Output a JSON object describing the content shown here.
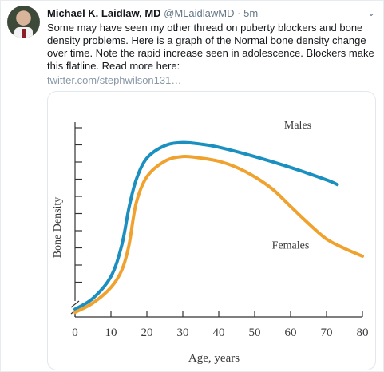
{
  "tweet": {
    "author_name": "Michael K. Laidlaw, MD",
    "author_handle": "@MLaidlawMD",
    "separator": "·",
    "time": "5m",
    "text": "Some may have seen my other thread on puberty blockers and bone density problems. Here is a graph of the Normal bone density change over time. Note the rapid increase seen in adolescence. Blockers make this flatline. Read more here:",
    "link_text": "twitter.com/stephwilson131…",
    "menu_icon": "chevron-down-icon",
    "colors": {
      "link": "#8899a6",
      "name": "#14171a",
      "meta": "#657786"
    }
  },
  "chart_data": {
    "type": "line",
    "xlabel": "Age, years",
    "ylabel": "Bone Density",
    "xlim": [
      0,
      80
    ],
    "x_ticks": [
      0,
      10,
      20,
      30,
      40,
      50,
      60,
      70,
      80
    ],
    "y_ticks_count": 11,
    "legend": "inline labels",
    "grid": false,
    "series": [
      {
        "name": "Males",
        "color": "#1a8fc0",
        "x": [
          0,
          5,
          10,
          13,
          15,
          17,
          20,
          25,
          30,
          35,
          40,
          50,
          60,
          70,
          73
        ],
        "y": [
          0.5,
          1.2,
          2.6,
          4.6,
          7.0,
          8.8,
          10.2,
          11.0,
          11.2,
          11.1,
          10.9,
          10.3,
          9.6,
          8.8,
          8.5
        ]
      },
      {
        "name": "Females",
        "color": "#f0a22e",
        "x": [
          0,
          5,
          10,
          13,
          15,
          17,
          20,
          25,
          30,
          35,
          40,
          45,
          50,
          55,
          60,
          65,
          70,
          75,
          80
        ],
        "y": [
          0.3,
          0.9,
          1.9,
          3.0,
          4.6,
          7.3,
          9.0,
          10.0,
          10.3,
          10.2,
          10.0,
          9.6,
          9.0,
          8.2,
          7.1,
          6.0,
          5.0,
          4.4,
          3.9
        ]
      }
    ]
  }
}
